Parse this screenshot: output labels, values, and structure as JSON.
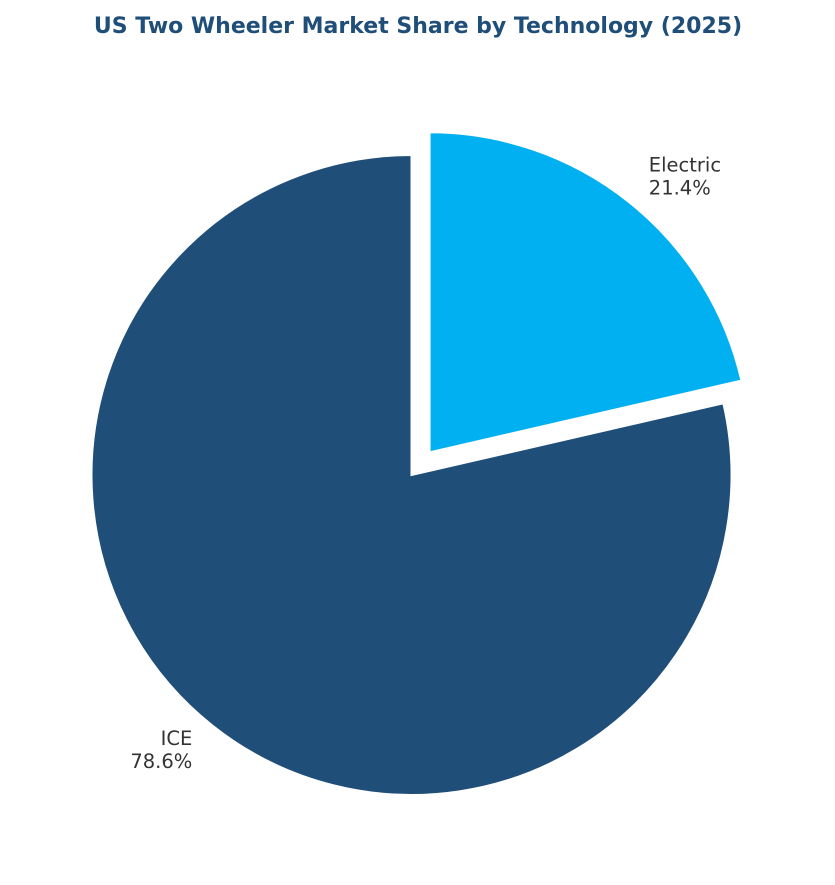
{
  "chart_data": {
    "type": "pie",
    "title": "US Two Wheeler Market Share by Technology (2025)",
    "start_angle": "top, counter-clockwise",
    "slices": [
      {
        "label": "ICE",
        "value": 78.6,
        "percent_label": "78.6%",
        "color": "#1f4e79",
        "exploded": false
      },
      {
        "label": "Electric",
        "value": 21.4,
        "percent_label": "21.4%",
        "color": "#00b0f0",
        "exploded": true
      }
    ]
  },
  "colors": {
    "title": "#1f4e79",
    "label_text": "#333333",
    "background": "#ffffff"
  }
}
